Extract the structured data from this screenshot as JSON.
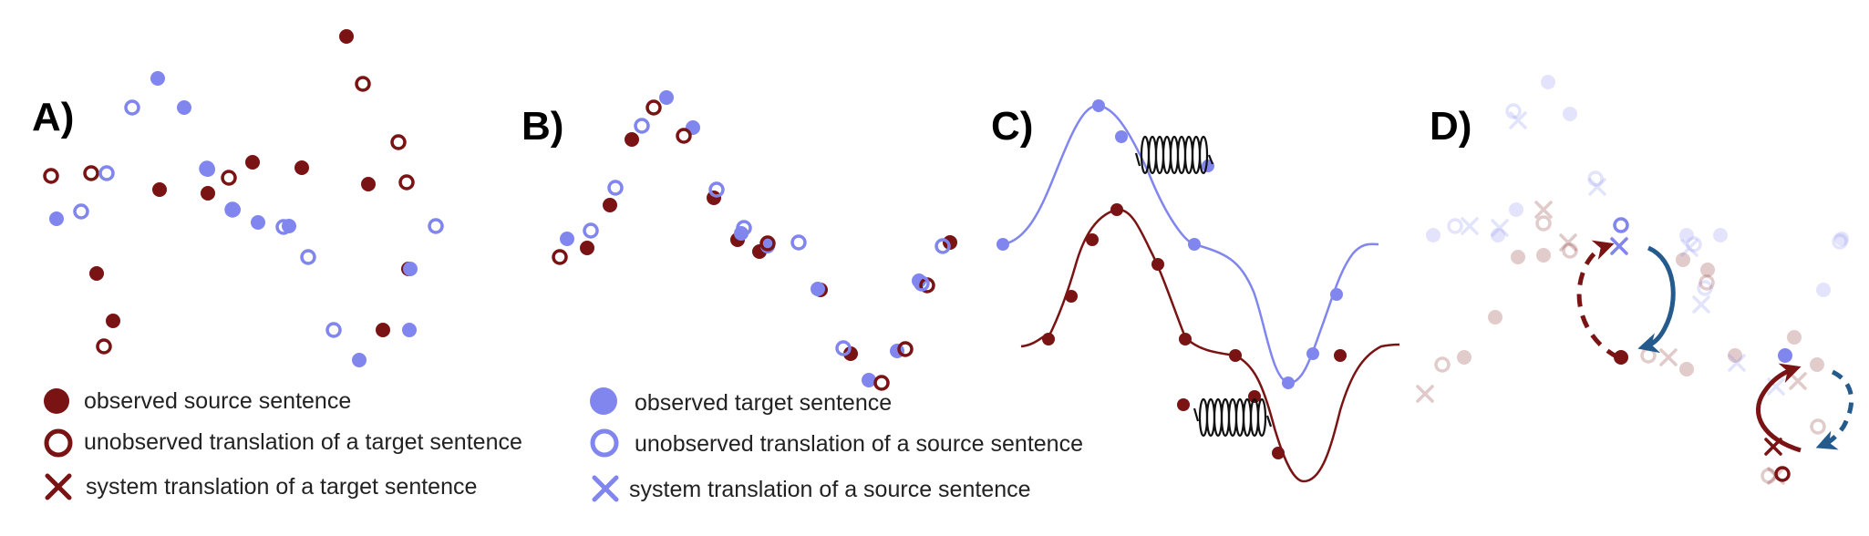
{
  "panels": {
    "a": {
      "label": "A)"
    },
    "b": {
      "label": "B)"
    },
    "c": {
      "label": "C)"
    },
    "d": {
      "label": "D)"
    }
  },
  "legend": {
    "observed_source": "observed source sentence",
    "unobserved_translation_target": "unobserved translation of a target sentence",
    "system_translation_target": "system translation of a target sentence",
    "observed_target": "observed target sentence",
    "unobserved_translation_source": "unobserved  translation of a source sentence",
    "system_translation_source": "system translation of a source sentence"
  },
  "colors": {
    "source": "#7a1414",
    "target": "#8186ef",
    "arrow_blue": "#255a8c",
    "spring": "#111111"
  },
  "icons": [
    "spring-icon",
    "arrow-icon",
    "cross-icon",
    "filled-circle-icon",
    "ring-icon"
  ]
}
